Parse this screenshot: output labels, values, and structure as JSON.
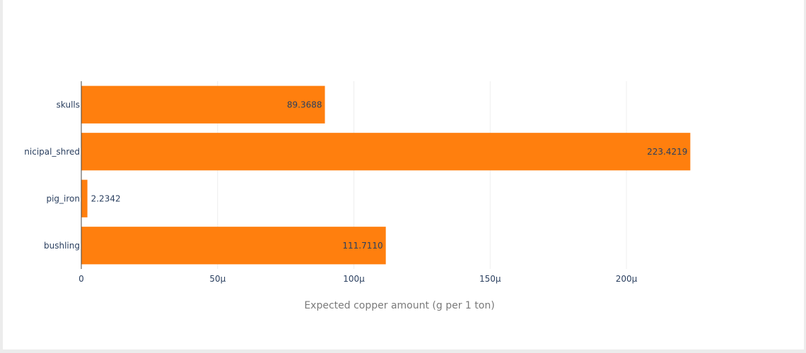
{
  "chart_data": {
    "type": "bar",
    "orientation": "horizontal",
    "categories": [
      "skulls",
      "nicipal_shred",
      "pig_iron",
      "bushling"
    ],
    "values": [
      8.93688e-05,
      0.0002234219,
      2.2342e-06,
      0.000111711
    ],
    "value_labels": [
      "89.3688",
      "223.4219",
      "2.2342",
      "111.7110"
    ],
    "xlabel": "Expected copper amount (g per 1 ton)",
    "ylabel": "",
    "xlim": [
      0,
      0.000235
    ],
    "x_ticks": [
      0,
      5e-05,
      0.0001,
      0.00015,
      0.0002
    ],
    "x_tick_labels": [
      "0",
      "50μ",
      "100μ",
      "150μ",
      "200μ"
    ],
    "grid": "vertical",
    "bar_color": "#ff7f0e",
    "grid_color": "#eeeeee",
    "axis_color": "#444444"
  }
}
